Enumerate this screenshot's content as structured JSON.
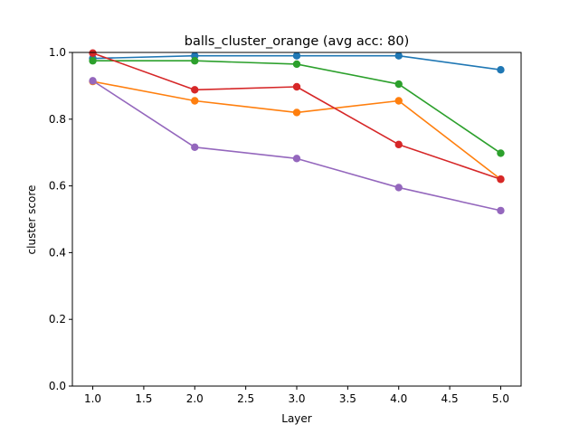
{
  "chart_data": {
    "type": "line",
    "title": "balls_cluster_orange (avg acc: 80)",
    "xlabel": "Layer",
    "ylabel": "cluster score",
    "xlim": [
      0.8,
      5.2
    ],
    "ylim": [
      0.0,
      1.0
    ],
    "x_ticks": [
      1.0,
      1.5,
      2.0,
      2.5,
      3.0,
      3.5,
      4.0,
      4.5,
      5.0
    ],
    "x_tick_labels": [
      "1.0",
      "1.5",
      "2.0",
      "2.5",
      "3.0",
      "3.5",
      "4.0",
      "4.5",
      "5.0"
    ],
    "y_ticks": [
      0.0,
      0.2,
      0.4,
      0.6,
      0.8,
      1.0
    ],
    "y_tick_labels": [
      "0.0",
      "0.2",
      "0.4",
      "0.6",
      "0.8",
      "1.0"
    ],
    "grid": false,
    "legend": "none",
    "x": [
      1,
      2,
      3,
      4,
      5
    ],
    "series": [
      {
        "color": "#1f77b4",
        "values": [
          0.982,
          0.99,
          0.99,
          0.99,
          0.948
        ]
      },
      {
        "color": "#ff7f0e",
        "values": [
          0.913,
          0.855,
          0.82,
          0.855,
          0.62
        ]
      },
      {
        "color": "#2ca02c",
        "values": [
          0.975,
          0.975,
          0.965,
          0.905,
          0.698
        ]
      },
      {
        "color": "#d62728",
        "values": [
          0.998,
          0.888,
          0.897,
          0.724,
          0.62
        ]
      },
      {
        "color": "#9467bd",
        "values": [
          0.915,
          0.716,
          0.682,
          0.595,
          0.526
        ]
      }
    ]
  }
}
